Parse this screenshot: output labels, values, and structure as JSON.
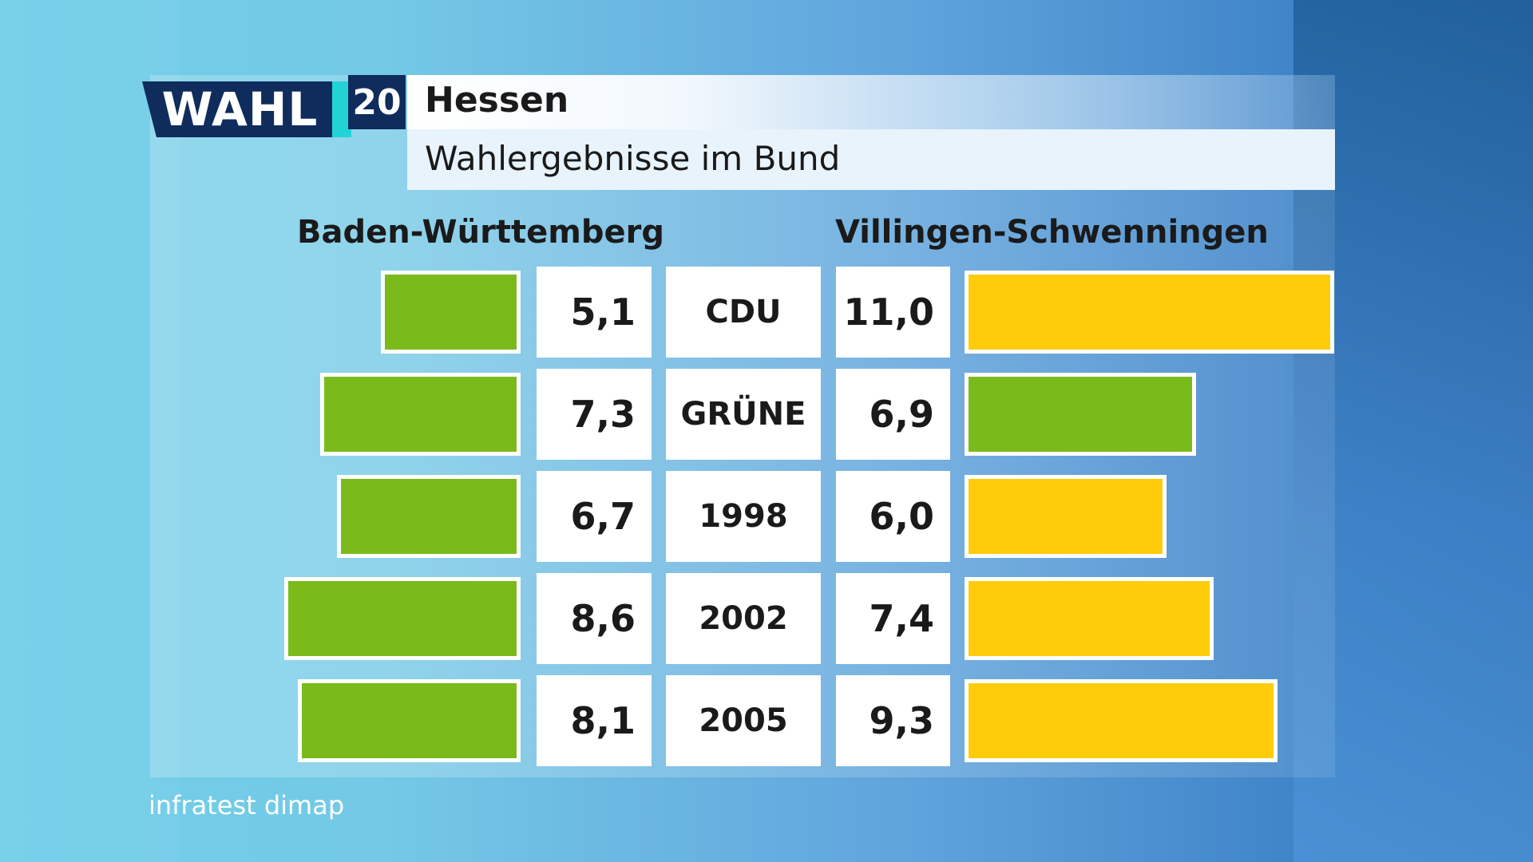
{
  "logo": {
    "word": "WAHL",
    "number": "20"
  },
  "title": "Hessen",
  "subtitle": "Wahlergebnisse im Bund",
  "source": "infratest dimap",
  "colors": {
    "green": "#7aba1b",
    "yellow": "#ffcc0b"
  },
  "chart_data": {
    "type": "bar",
    "title": "Hessen",
    "subtitle": "Wahlergebnisse im Bund",
    "categories": [
      "CDU",
      "GRÜNE",
      "1998",
      "2002",
      "2005"
    ],
    "series": [
      {
        "name": "Baden-Württemberg",
        "values": [
          5.1,
          7.3,
          6.7,
          8.6,
          8.1
        ],
        "labels": [
          "5,1",
          "7,3",
          "6,7",
          "8,6",
          "8,1"
        ],
        "colors": [
          "#7aba1b",
          "#7aba1b",
          "#7aba1b",
          "#7aba1b",
          "#7aba1b"
        ]
      },
      {
        "name": "Villingen-Schwenningen",
        "values": [
          11.0,
          6.9,
          6.0,
          7.4,
          9.3
        ],
        "labels": [
          "11,0",
          "6,9",
          "6,0",
          "7,4",
          "9,3"
        ],
        "colors": [
          "#ffcc0b",
          "#7aba1b",
          "#ffcc0b",
          "#ffcc0b",
          "#ffcc0b"
        ]
      }
    ]
  }
}
